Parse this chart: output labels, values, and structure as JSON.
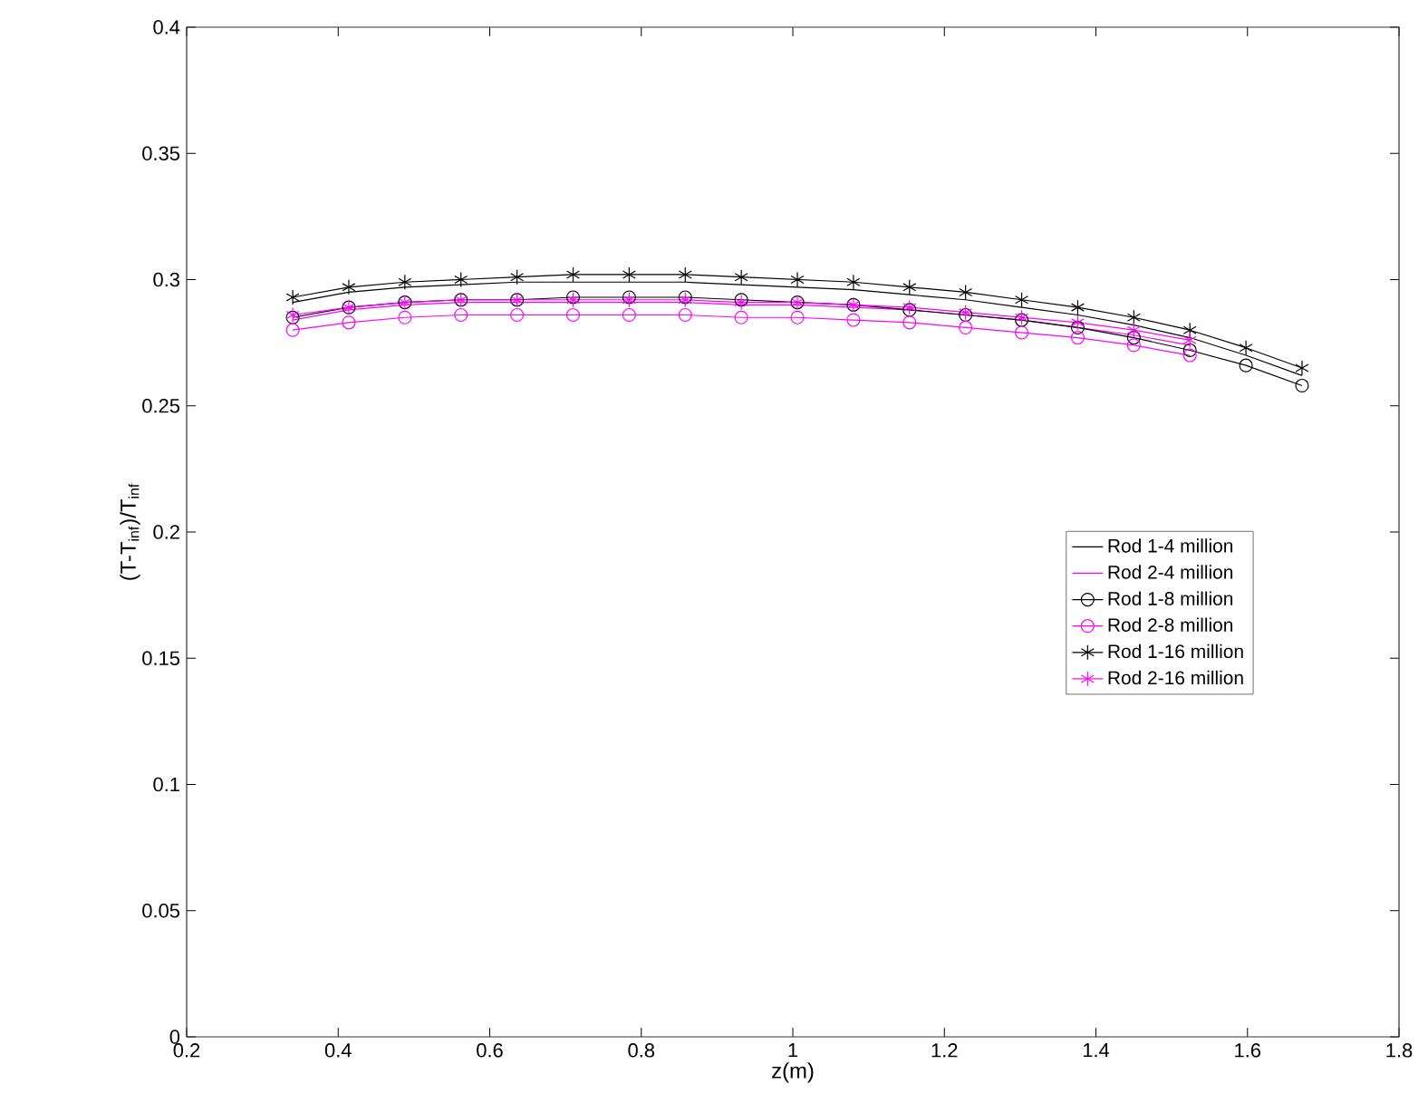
{
  "chart_data": {
    "type": "line",
    "xlabel": "z(m)",
    "ylabel": "(T-T$_{inf}$)/T$_{inf}$",
    "xlim": [
      0.2,
      1.8
    ],
    "xticks": [
      0.2,
      0.4,
      0.6,
      0.8,
      1,
      1.2,
      1.4,
      1.6,
      1.8
    ],
    "ylim": [
      0,
      0.4
    ],
    "yticks": [
      0,
      0.05,
      0.1,
      0.15,
      0.2,
      0.25,
      0.3,
      0.35,
      0.4
    ],
    "grid": false,
    "legend": "right",
    "line_style": "solid",
    "series": [
      {
        "name": "Rod 1-4 million",
        "color": "#000000",
        "marker": "none",
        "x": [
          0.34,
          0.414,
          0.488,
          0.562,
          0.636,
          0.71,
          0.784,
          0.858,
          0.932,
          1.006,
          1.08,
          1.154,
          1.228,
          1.302,
          1.376,
          1.45,
          1.524,
          1.598,
          1.672
        ],
        "values": [
          0.291,
          0.295,
          0.297,
          0.298,
          0.299,
          0.299,
          0.299,
          0.299,
          0.298,
          0.297,
          0.296,
          0.294,
          0.292,
          0.289,
          0.286,
          0.282,
          0.277,
          0.27,
          0.262
        ]
      },
      {
        "name": "Rod 2-4 million",
        "color": "#ff00ff",
        "marker": "none",
        "x": [
          0.34,
          0.414,
          0.488,
          0.562,
          0.636,
          0.71,
          0.784,
          0.858,
          0.932,
          1.006,
          1.08,
          1.154,
          1.228,
          1.302,
          1.376,
          1.45,
          1.524
        ],
        "values": [
          0.284,
          0.288,
          0.29,
          0.291,
          0.291,
          0.291,
          0.291,
          0.291,
          0.29,
          0.29,
          0.289,
          0.288,
          0.286,
          0.284,
          0.281,
          0.278,
          0.274
        ]
      },
      {
        "name": "Rod 1-8 million",
        "color": "#000000",
        "marker": "circle",
        "x": [
          0.34,
          0.414,
          0.488,
          0.562,
          0.636,
          0.71,
          0.784,
          0.858,
          0.932,
          1.006,
          1.08,
          1.154,
          1.228,
          1.302,
          1.376,
          1.45,
          1.524,
          1.598,
          1.672
        ],
        "values": [
          0.285,
          0.289,
          0.291,
          0.292,
          0.292,
          0.293,
          0.293,
          0.293,
          0.292,
          0.291,
          0.29,
          0.288,
          0.286,
          0.284,
          0.281,
          0.277,
          0.272,
          0.266,
          0.258
        ]
      },
      {
        "name": "Rod 2-8 million",
        "color": "#ff00ff",
        "marker": "circle",
        "x": [
          0.34,
          0.414,
          0.488,
          0.562,
          0.636,
          0.71,
          0.784,
          0.858,
          0.932,
          1.006,
          1.08,
          1.154,
          1.228,
          1.302,
          1.376,
          1.45,
          1.524
        ],
        "values": [
          0.28,
          0.283,
          0.285,
          0.286,
          0.286,
          0.286,
          0.286,
          0.286,
          0.285,
          0.285,
          0.284,
          0.283,
          0.281,
          0.279,
          0.277,
          0.274,
          0.27
        ]
      },
      {
        "name": "Rod 1-16 million",
        "color": "#000000",
        "marker": "cross",
        "x": [
          0.34,
          0.414,
          0.488,
          0.562,
          0.636,
          0.71,
          0.784,
          0.858,
          0.932,
          1.006,
          1.08,
          1.154,
          1.228,
          1.302,
          1.376,
          1.45,
          1.524,
          1.598,
          1.672
        ],
        "values": [
          0.293,
          0.297,
          0.299,
          0.3,
          0.301,
          0.302,
          0.302,
          0.302,
          0.301,
          0.3,
          0.299,
          0.297,
          0.295,
          0.292,
          0.289,
          0.285,
          0.28,
          0.273,
          0.265
        ]
      },
      {
        "name": "Rod 2-16 million",
        "color": "#ff00ff",
        "marker": "cross",
        "x": [
          0.34,
          0.414,
          0.488,
          0.562,
          0.636,
          0.71,
          0.784,
          0.858,
          0.932,
          1.006,
          1.08,
          1.154,
          1.228,
          1.302,
          1.376,
          1.45,
          1.524
        ],
        "values": [
          0.286,
          0.289,
          0.291,
          0.292,
          0.292,
          0.292,
          0.292,
          0.292,
          0.291,
          0.291,
          0.29,
          0.289,
          0.287,
          0.285,
          0.283,
          0.28,
          0.276
        ]
      }
    ]
  }
}
